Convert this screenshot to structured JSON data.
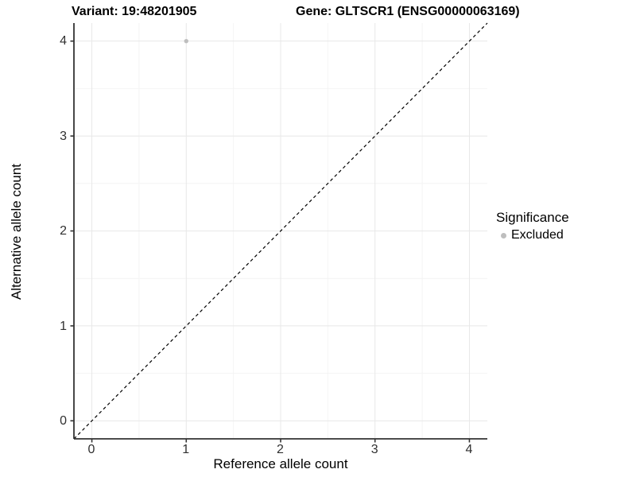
{
  "titles": {
    "variant": "Variant: 19:48201905",
    "gene": "Gene: GLTSCR1 (ENSG00000063169)"
  },
  "axes": {
    "x": {
      "label": "Reference allele count",
      "tick_labels": [
        "0",
        "1",
        "2",
        "3",
        "4"
      ]
    },
    "y": {
      "label": "Alternative allele count",
      "tick_labels": [
        "4",
        "3",
        "2",
        "1",
        "0"
      ]
    }
  },
  "legend": {
    "title": "Significance",
    "items": [
      {
        "label": "Excluded",
        "color": "#bebebe"
      }
    ]
  },
  "colors": {
    "point": "#bebebe",
    "grid_major": "#e8e8e8",
    "grid_minor": "#f4f4f4",
    "axis_line": "#333333",
    "tick_mark": "#333333",
    "reference_line": "#000000",
    "tick_text": "#303030"
  },
  "chart_data": {
    "type": "scatter",
    "title": "Variant: 19:48201905 | Gene: GLTSCR1 (ENSG00000063169)",
    "xlabel": "Reference allele count",
    "ylabel": "Alternative allele count",
    "xlim": [
      -0.19,
      4.19
    ],
    "ylim": [
      -0.19,
      4.19
    ],
    "xticks": [
      0,
      1,
      2,
      3,
      4
    ],
    "yticks": [
      0,
      1,
      2,
      3,
      4
    ],
    "minor_xticks": [
      0.5,
      1.5,
      2.5,
      3.5
    ],
    "minor_yticks": [
      0.5,
      1.5,
      2.5,
      3.5
    ],
    "grid": "major+minor",
    "legend_position": "right",
    "series": [
      {
        "name": "Excluded",
        "color": "#bebebe",
        "point_radius": 2.7,
        "points": [
          {
            "x": 1,
            "y": 4
          }
        ]
      }
    ],
    "reference_line": {
      "name": "identity (y = x)",
      "style": "dashed",
      "from": [
        -0.19,
        -0.19
      ],
      "to": [
        4.19,
        4.19
      ]
    }
  }
}
